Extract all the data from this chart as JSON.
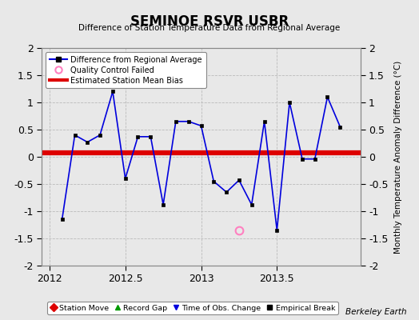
{
  "title": "SEMINOE RSVR USBR",
  "subtitle": "Difference of Station Temperature Data from Regional Average",
  "ylabel_right": "Monthly Temperature Anomaly Difference (°C)",
  "credit": "Berkeley Earth",
  "xlim": [
    2011.95,
    2014.05
  ],
  "ylim": [
    -2,
    2
  ],
  "yticks": [
    -2,
    -1.5,
    -1,
    -0.5,
    0,
    0.5,
    1,
    1.5,
    2
  ],
  "xticks": [
    2012,
    2012.5,
    2013,
    2013.5
  ],
  "bias": 0.07,
  "x_data": [
    2012.083,
    2012.167,
    2012.25,
    2012.333,
    2012.417,
    2012.5,
    2012.583,
    2012.667,
    2012.75,
    2012.833,
    2012.917,
    2013.0,
    2013.083,
    2013.167,
    2013.25,
    2013.333,
    2013.417,
    2013.5,
    2013.583,
    2013.667,
    2013.75,
    2013.833,
    2013.917
  ],
  "y_data": [
    -1.15,
    0.4,
    0.27,
    0.4,
    1.2,
    -0.4,
    0.37,
    0.37,
    -0.88,
    0.65,
    0.65,
    0.57,
    -0.45,
    -0.65,
    -0.43,
    -0.88,
    0.65,
    -1.35,
    1.0,
    -0.04,
    -0.04,
    1.1,
    0.55
  ],
  "qc_failed_x": [
    2013.25
  ],
  "qc_failed_y": [
    -1.35
  ],
  "line_color": "#0000dd",
  "marker_color": "#000000",
  "bias_color": "#dd0000",
  "qc_color": "#ff80c0",
  "bg_color": "#e8e8e8",
  "grid_color": "#bbbbbb",
  "legend_labels": [
    "Difference from Regional Average",
    "Quality Control Failed",
    "Estimated Station Mean Bias"
  ],
  "bottom_legend_labels": [
    "Station Move",
    "Record Gap",
    "Time of Obs. Change",
    "Empirical Break"
  ],
  "bottom_legend_colors": [
    "#dd0000",
    "#009900",
    "#0000dd",
    "#000000"
  ],
  "bottom_legend_markers": [
    "D",
    "^",
    "v",
    "s"
  ]
}
